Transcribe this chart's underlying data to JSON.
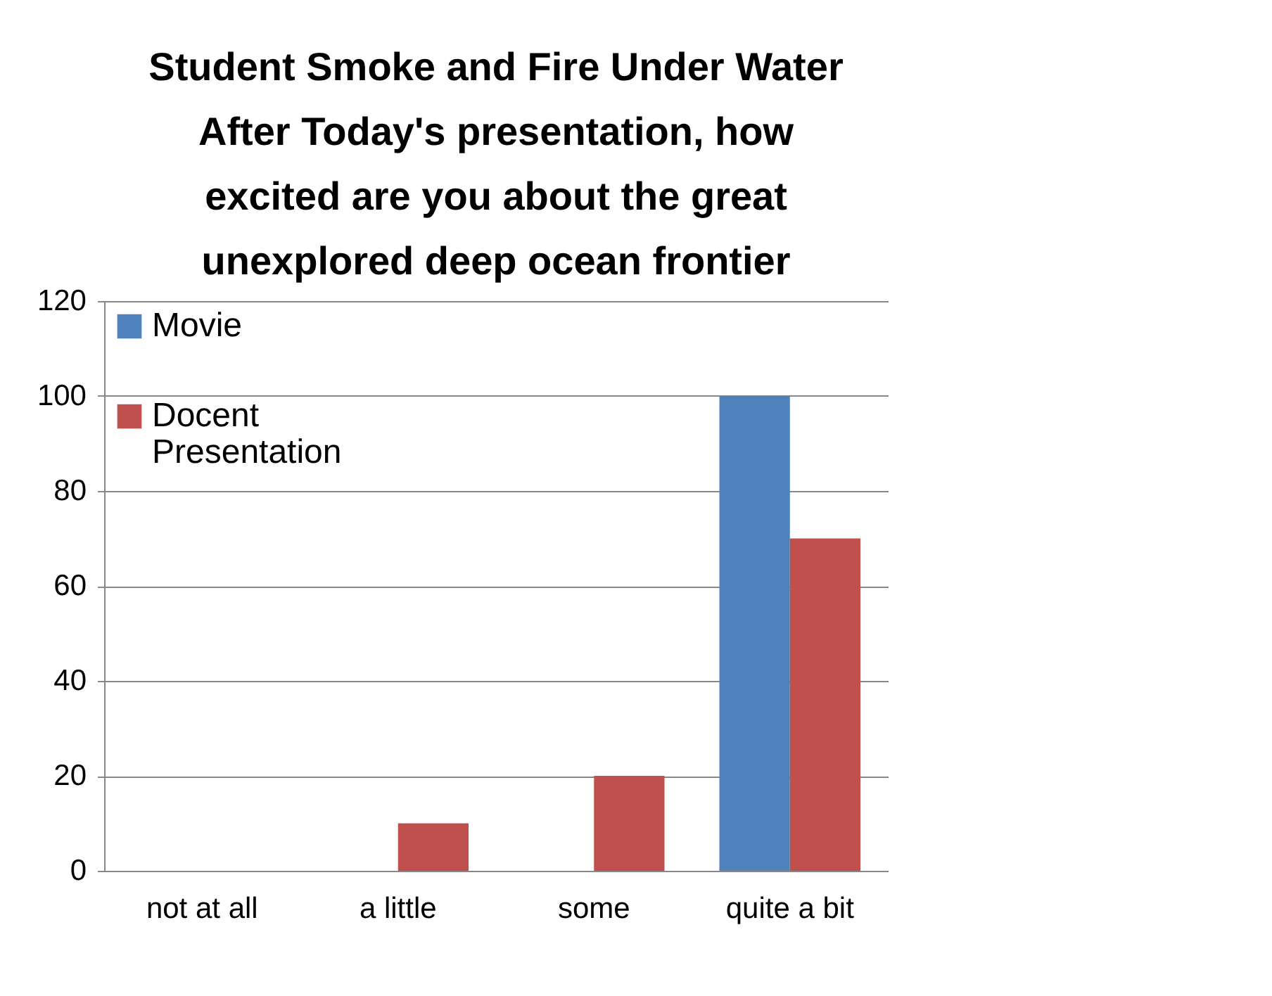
{
  "chart_data": {
    "type": "bar",
    "title": "Student Smoke and Fire Under Water",
    "subtitle": "After Today's presentation, how excited are you about the great unexplored deep ocean frontier",
    "categories": [
      "not at all",
      "a little",
      "some",
      "quite a bit"
    ],
    "series": [
      {
        "name": "Movie",
        "color": "#4f81bd",
        "values": [
          0,
          0,
          0,
          100
        ]
      },
      {
        "name": "Docent Presentation",
        "color": "#c0504d",
        "values": [
          0,
          10,
          20,
          70
        ]
      }
    ],
    "ylim": [
      0,
      120
    ],
    "yticks": [
      0,
      20,
      40,
      60,
      80,
      100,
      120
    ],
    "grid": "y",
    "legend": "top left"
  }
}
